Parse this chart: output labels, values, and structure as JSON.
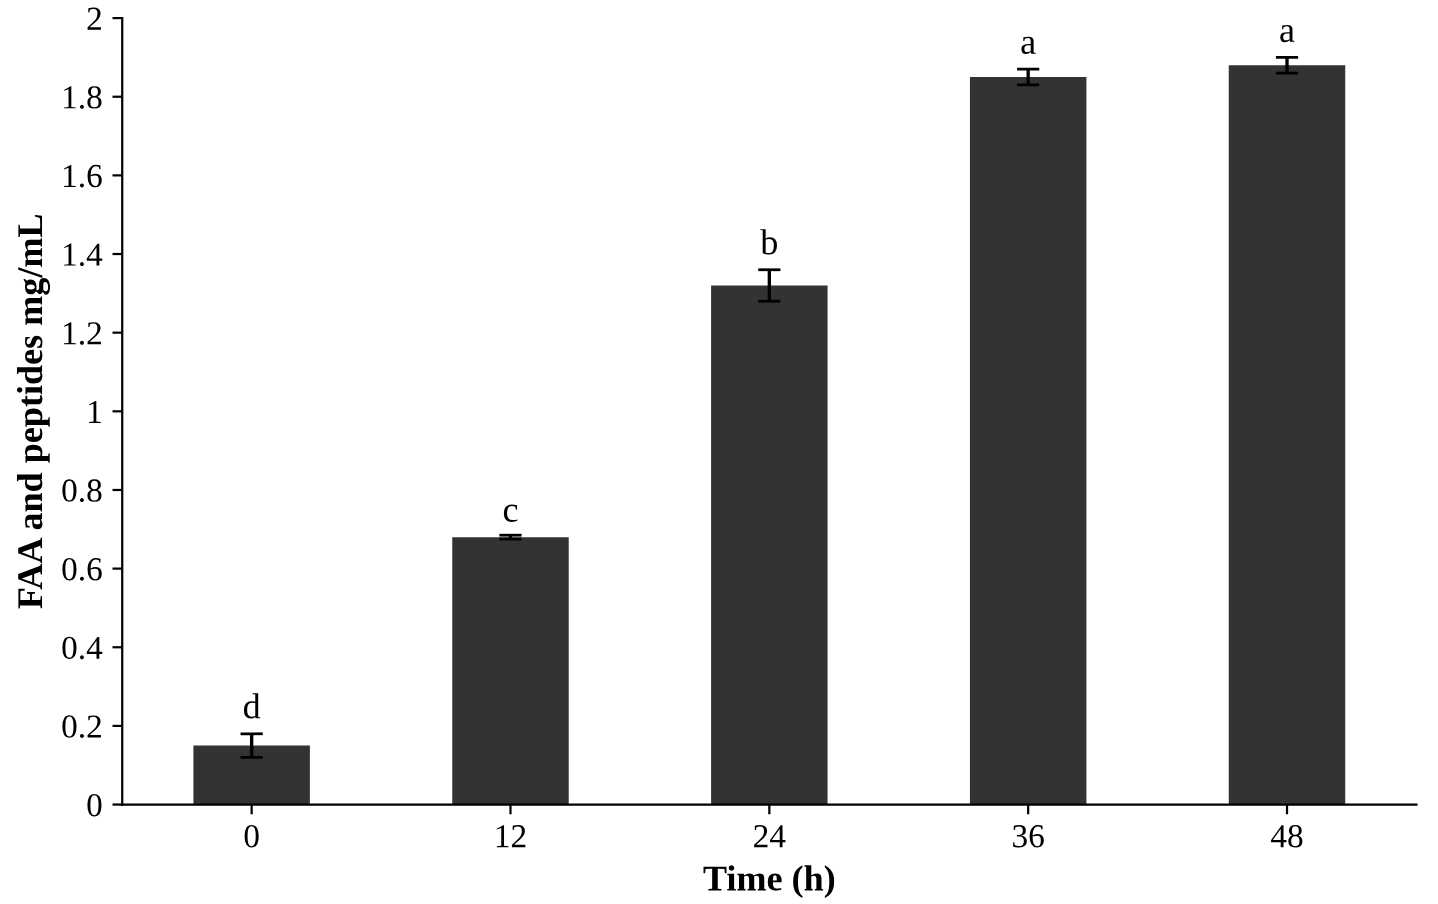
{
  "chart_data": {
    "type": "bar",
    "xlabel": "Time (h)",
    "ylabel": "FAA and peptides mg/mL",
    "categories": [
      "0",
      "12",
      "24",
      "36",
      "48"
    ],
    "values": [
      0.15,
      0.68,
      1.32,
      1.85,
      1.88
    ],
    "errors": [
      0.03,
      0.005,
      0.04,
      0.02,
      0.02
    ],
    "color": "#333333",
    "ylim": [
      0,
      2
    ],
    "yticks": [
      0,
      0.2,
      0.4,
      0.6,
      0.8,
      1,
      1.2,
      1.4,
      1.6,
      1.8,
      2
    ],
    "grid": false,
    "legend": false,
    "annotations": [
      {
        "text": "d",
        "x": "0",
        "y": 0.2
      },
      {
        "text": "c",
        "x": "12",
        "y": 0.7
      },
      {
        "text": "b",
        "x": "24",
        "y": 1.38
      },
      {
        "text": "a",
        "x": "36",
        "y": 1.89
      },
      {
        "text": "a",
        "x": "48",
        "y": 1.92
      }
    ]
  }
}
